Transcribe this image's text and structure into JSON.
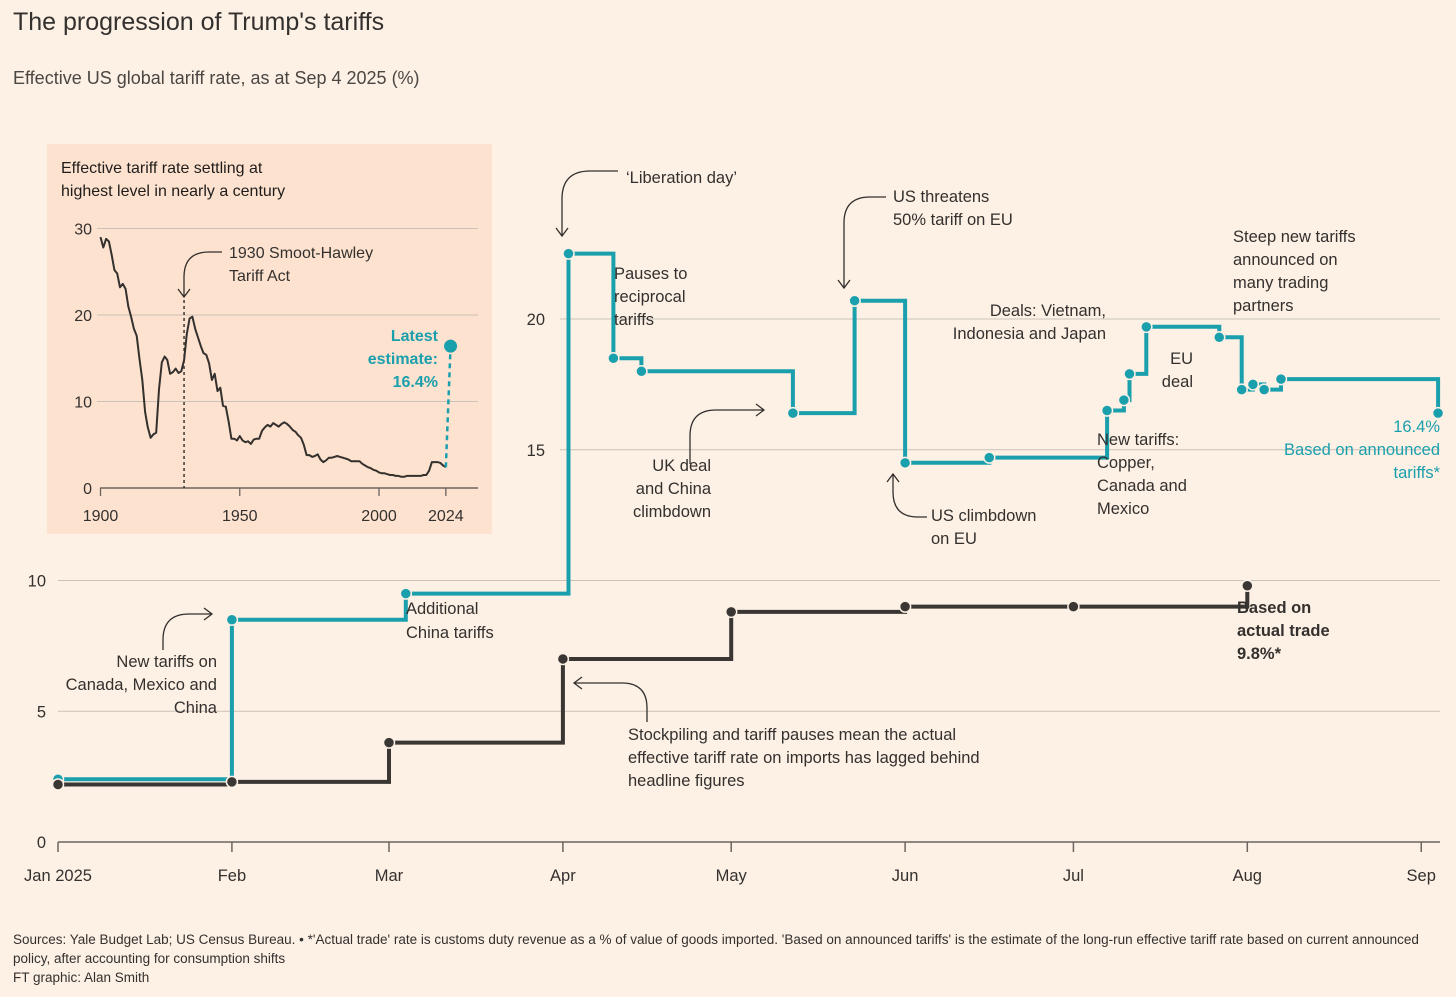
{
  "title": "The progression of Trump's tariffs",
  "subtitle": "Effective US global tariff rate, as at Sep 4 2025 (%)",
  "footer": {
    "sources": "Sources: Yale Budget Lab; US Census Bureau. • *'Actual trade' rate is customs duty revenue as a % of value of goods imported. 'Based on announced tariffs' is the estimate of the long-run effective tariff rate based on current announced policy, after accounting for consumption shifts",
    "credit": "FT graphic: Alan Smith"
  },
  "colors": {
    "teal": "#1a9fad",
    "dark": "#3a3633",
    "background": "#fdf1e5",
    "inset_background": "#fde2cf",
    "grid": "#c9c2ba"
  },
  "chart_data": [
    {
      "type": "line",
      "step": true,
      "x_unit": "date",
      "xlim": [
        "2025-01-01",
        "2025-09-10"
      ],
      "ylim": [
        0,
        25
      ],
      "yticks": [
        0,
        5,
        10,
        15,
        20
      ],
      "xticks": [
        {
          "date": "2025-01-01",
          "label": "Jan 2025"
        },
        {
          "date": "2025-02-01",
          "label": "Feb"
        },
        {
          "date": "2025-03-01",
          "label": "Mar"
        },
        {
          "date": "2025-04-01",
          "label": "Apr"
        },
        {
          "date": "2025-05-01",
          "label": "May"
        },
        {
          "date": "2025-06-01",
          "label": "Jun"
        },
        {
          "date": "2025-07-01",
          "label": "Jul"
        },
        {
          "date": "2025-08-01",
          "label": "Aug"
        },
        {
          "date": "2025-09-01",
          "label": "Sep"
        }
      ],
      "grid": true,
      "series": [
        {
          "name": "Based on announced tariffs",
          "color": "#1a9fad",
          "end_label": [
            "16.4%",
            "Based on announced",
            "tariffs*"
          ],
          "points": [
            [
              "2025-01-01",
              2.4
            ],
            [
              "2025-02-01",
              8.5
            ],
            [
              "2025-03-04",
              9.5
            ],
            [
              "2025-04-02",
              22.5
            ],
            [
              "2025-04-10",
              18.5
            ],
            [
              "2025-04-15",
              18.0
            ],
            [
              "2025-05-12",
              16.4
            ],
            [
              "2025-05-23",
              20.7
            ],
            [
              "2025-06-01",
              14.5
            ],
            [
              "2025-06-16",
              14.7
            ],
            [
              "2025-07-07",
              16.5
            ],
            [
              "2025-07-10",
              16.9
            ],
            [
              "2025-07-11",
              17.9
            ],
            [
              "2025-07-14",
              19.7
            ],
            [
              "2025-07-27",
              19.3
            ],
            [
              "2025-07-31",
              17.3
            ],
            [
              "2025-08-02",
              17.5
            ],
            [
              "2025-08-04",
              17.3
            ],
            [
              "2025-08-07",
              17.7
            ],
            [
              "2025-09-04",
              16.4
            ]
          ]
        },
        {
          "name": "Based on actual trade",
          "color": "#3a3633",
          "end_label": [
            "Based on",
            "actual trade",
            "9.8%*"
          ],
          "points": [
            [
              "2025-01-01",
              2.2
            ],
            [
              "2025-02-01",
              2.3
            ],
            [
              "2025-03-01",
              3.8
            ],
            [
              "2025-04-01",
              7.0
            ],
            [
              "2025-05-01",
              8.8
            ],
            [
              "2025-06-01",
              9.0
            ],
            [
              "2025-07-01",
              9.0
            ],
            [
              "2025-08-01",
              9.8
            ]
          ]
        }
      ],
      "annotations": [
        {
          "id": "liberation",
          "lines": [
            "‘Liberation day’"
          ],
          "color": "#33302e"
        },
        {
          "id": "pauses",
          "lines": [
            "Pauses to",
            "reciprocal",
            "tariffs"
          ],
          "color": "#33302e"
        },
        {
          "id": "threatens",
          "lines": [
            "US threatens",
            "50% tariff on EU"
          ],
          "color": "#33302e"
        },
        {
          "id": "deals",
          "lines": [
            "Deals: Vietnam,",
            "Indonesia and Japan"
          ],
          "color": "#33302e"
        },
        {
          "id": "steep",
          "lines": [
            "Steep new tariffs",
            "announced on",
            "many trading",
            "partners"
          ],
          "color": "#33302e"
        },
        {
          "id": "eu-deal",
          "lines": [
            "EU",
            "deal"
          ],
          "color": "#33302e"
        },
        {
          "id": "uk-deal",
          "lines": [
            "UK deal",
            "and China",
            "climbdown"
          ],
          "color": "#33302e"
        },
        {
          "id": "climbdown",
          "lines": [
            "US climbdown",
            "on EU"
          ],
          "color": "#33302e"
        },
        {
          "id": "new-tariffs-copper",
          "lines": [
            "New tariffs:",
            "Copper,",
            "Canada and",
            "Mexico"
          ],
          "color": "#33302e"
        },
        {
          "id": "china-tariffs",
          "lines": [
            "Additional",
            "China tariffs"
          ],
          "color": "#33302e"
        },
        {
          "id": "new-tariffs-canada",
          "lines": [
            "New tariffs on",
            "Canada, Mexico and",
            "China"
          ],
          "color": "#33302e"
        },
        {
          "id": "stockpiling",
          "lines": [
            "Stockpiling and tariff pauses mean the actual",
            "effective tariff rate on imports has lagged behind",
            "headline figures"
          ],
          "color": "#33302e"
        }
      ]
    },
    {
      "type": "line",
      "inset": true,
      "title": [
        "Effective tariff rate settling at",
        "highest level in nearly a century"
      ],
      "xlim": [
        1900,
        2027
      ],
      "ylim": [
        0,
        30
      ],
      "yticks": [
        0,
        10,
        20,
        30
      ],
      "xticks": [
        1900,
        1950,
        2000,
        2024
      ],
      "series": [
        {
          "name": "Historical effective tariff rate",
          "color": "#33302e",
          "points": [
            [
              1900,
              29.0
            ],
            [
              1901,
              27.8
            ],
            [
              1902,
              28.8
            ],
            [
              1903,
              28.5
            ],
            [
              1904,
              27.0
            ],
            [
              1905,
              25.2
            ],
            [
              1906,
              24.8
            ],
            [
              1907,
              23.2
            ],
            [
              1908,
              23.6
            ],
            [
              1909,
              23.0
            ],
            [
              1910,
              21.0
            ],
            [
              1911,
              19.8
            ],
            [
              1912,
              18.4
            ],
            [
              1913,
              17.6
            ],
            [
              1914,
              14.9
            ],
            [
              1915,
              12.5
            ],
            [
              1916,
              8.8
            ],
            [
              1917,
              7.0
            ],
            [
              1918,
              5.8
            ],
            [
              1919,
              6.2
            ],
            [
              1920,
              6.4
            ],
            [
              1921,
              11.4
            ],
            [
              1922,
              14.5
            ],
            [
              1923,
              15.2
            ],
            [
              1924,
              14.8
            ],
            [
              1925,
              13.2
            ],
            [
              1926,
              13.4
            ],
            [
              1927,
              13.8
            ],
            [
              1928,
              13.3
            ],
            [
              1929,
              13.5
            ],
            [
              1930,
              14.8
            ],
            [
              1931,
              17.8
            ],
            [
              1932,
              19.6
            ],
            [
              1933,
              19.8
            ],
            [
              1934,
              18.4
            ],
            [
              1935,
              17.4
            ],
            [
              1936,
              16.4
            ],
            [
              1937,
              15.6
            ],
            [
              1938,
              15.4
            ],
            [
              1939,
              14.4
            ],
            [
              1940,
              12.5
            ],
            [
              1941,
              13.2
            ],
            [
              1942,
              11.2
            ],
            [
              1943,
              11.6
            ],
            [
              1944,
              9.5
            ],
            [
              1945,
              9.4
            ],
            [
              1946,
              7.7
            ],
            [
              1947,
              5.7
            ],
            [
              1948,
              5.7
            ],
            [
              1949,
              5.5
            ],
            [
              1950,
              6.0
            ],
            [
              1951,
              5.5
            ],
            [
              1952,
              5.3
            ],
            [
              1953,
              5.4
            ],
            [
              1954,
              5.1
            ],
            [
              1955,
              5.6
            ],
            [
              1956,
              5.7
            ],
            [
              1957,
              5.7
            ],
            [
              1958,
              6.6
            ],
            [
              1959,
              7.0
            ],
            [
              1960,
              7.3
            ],
            [
              1961,
              7.1
            ],
            [
              1962,
              7.5
            ],
            [
              1963,
              7.3
            ],
            [
              1964,
              7.1
            ],
            [
              1965,
              7.4
            ],
            [
              1966,
              7.6
            ],
            [
              1967,
              7.4
            ],
            [
              1968,
              7.1
            ],
            [
              1969,
              6.7
            ],
            [
              1970,
              6.5
            ],
            [
              1971,
              6.1
            ],
            [
              1972,
              5.8
            ],
            [
              1973,
              5.0
            ],
            [
              1974,
              3.8
            ],
            [
              1975,
              3.8
            ],
            [
              1976,
              3.6
            ],
            [
              1977,
              3.7
            ],
            [
              1978,
              3.9
            ],
            [
              1979,
              3.3
            ],
            [
              1980,
              3.0
            ],
            [
              1981,
              3.2
            ],
            [
              1982,
              3.5
            ],
            [
              1983,
              3.5
            ],
            [
              1984,
              3.6
            ],
            [
              1985,
              3.7
            ],
            [
              1986,
              3.6
            ],
            [
              1987,
              3.5
            ],
            [
              1988,
              3.4
            ],
            [
              1989,
              3.3
            ],
            [
              1990,
              3.1
            ],
            [
              1991,
              3.1
            ],
            [
              1992,
              3.1
            ],
            [
              1993,
              3.1
            ],
            [
              1994,
              2.8
            ],
            [
              1995,
              2.6
            ],
            [
              1996,
              2.4
            ],
            [
              1997,
              2.3
            ],
            [
              1998,
              2.1
            ],
            [
              1999,
              2.0
            ],
            [
              2000,
              1.8
            ],
            [
              2001,
              1.7
            ],
            [
              2002,
              1.7
            ],
            [
              2003,
              1.6
            ],
            [
              2004,
              1.5
            ],
            [
              2005,
              1.5
            ],
            [
              2006,
              1.4
            ],
            [
              2007,
              1.4
            ],
            [
              2008,
              1.3
            ],
            [
              2009,
              1.3
            ],
            [
              2010,
              1.4
            ],
            [
              2011,
              1.4
            ],
            [
              2012,
              1.4
            ],
            [
              2013,
              1.4
            ],
            [
              2014,
              1.4
            ],
            [
              2015,
              1.4
            ],
            [
              2016,
              1.5
            ],
            [
              2017,
              1.5
            ],
            [
              2018,
              2.0
            ],
            [
              2019,
              3.0
            ],
            [
              2020,
              3.0
            ],
            [
              2021,
              3.0
            ],
            [
              2022,
              2.9
            ],
            [
              2023,
              2.6
            ],
            [
              2024,
              2.4
            ]
          ]
        },
        {
          "name": "Latest estimate",
          "color": "#1a9fad",
          "dashed": true,
          "points": [
            [
              2024,
              2.4
            ],
            [
              2025.7,
              16.4
            ]
          ]
        }
      ],
      "annotations": [
        {
          "id": "smoot-hawley",
          "lines": [
            "1930 Smoot-Hawley",
            "Tariff Act"
          ],
          "x": 1930
        },
        {
          "id": "latest",
          "lines": [
            "Latest",
            "estimate:",
            "16.4%"
          ]
        }
      ]
    }
  ]
}
